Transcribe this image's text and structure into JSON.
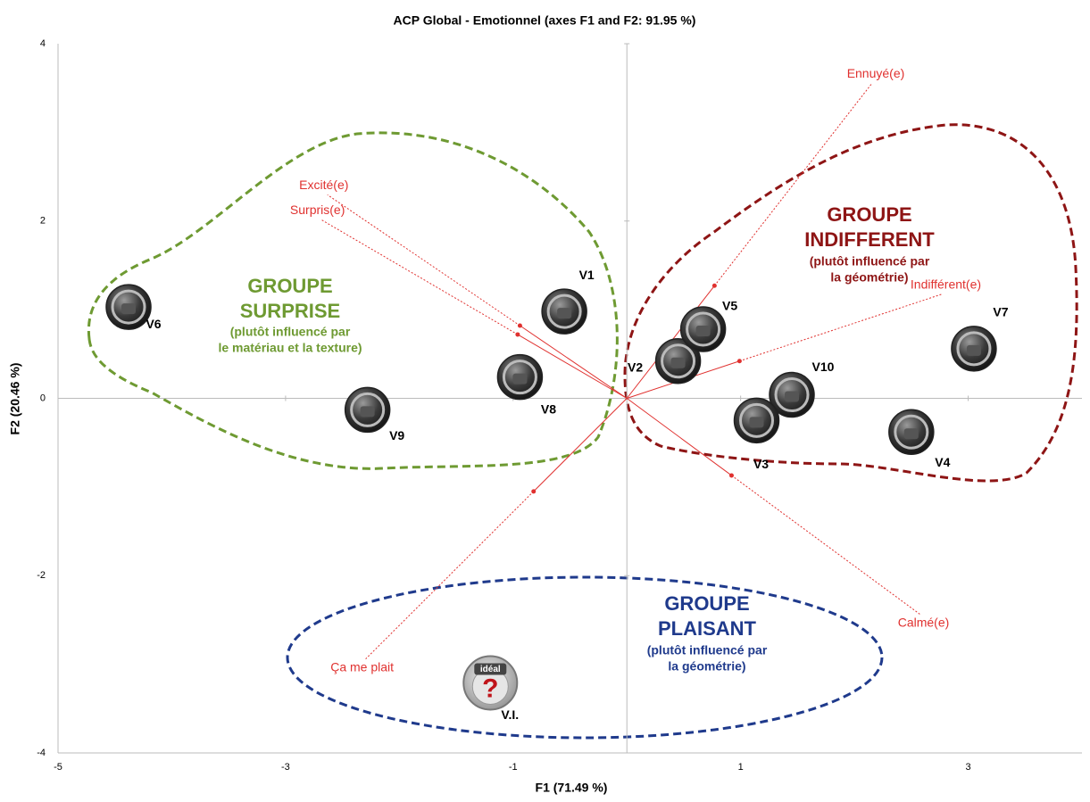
{
  "chart_data": {
    "type": "biplot",
    "title": "ACP  Global  -  Emotionnel  (axes F1 and F2: 91.95 %)",
    "x_label": "F1 (71.49 %)",
    "y_label": "F2 (20.46 %)",
    "xlim": [
      -5,
      4
    ],
    "ylim": [
      -4,
      4
    ],
    "xticks": [
      -5,
      -3,
      -1,
      1,
      3
    ],
    "yticks": [
      -4,
      -2,
      0,
      2,
      4
    ],
    "points": [
      {
        "label": "V6",
        "x": -4.38,
        "y": 1.03
      },
      {
        "label": "V9",
        "x": -2.28,
        "y": -0.13
      },
      {
        "label": "V8",
        "x": -0.94,
        "y": 0.24
      },
      {
        "label": "V1",
        "x": -0.55,
        "y": 0.98
      },
      {
        "label": "V2",
        "x": 0.45,
        "y": 0.42
      },
      {
        "label": "V5",
        "x": 0.67,
        "y": 0.78
      },
      {
        "label": "V10",
        "x": 1.45,
        "y": 0.04
      },
      {
        "label": "V3",
        "x": 1.14,
        "y": -0.25
      },
      {
        "label": "V4",
        "x": 2.5,
        "y": -0.38
      },
      {
        "label": "V7",
        "x": 3.05,
        "y": 0.56
      },
      {
        "label": "V.I.",
        "x": -1.2,
        "y": -3.21,
        "icon_text": "idéal",
        "icon_symbol": "?"
      }
    ],
    "vector_color": "#e0312f",
    "vectors": [
      {
        "label": "Excité(e)",
        "x": -0.94,
        "y": 0.82
      },
      {
        "label": "Surpris(e)",
        "x": -0.96,
        "y": 0.72
      },
      {
        "label": "Ennuyé(e)",
        "x": 0.77,
        "y": 1.27
      },
      {
        "label": "Indifférent(e)",
        "x": 0.99,
        "y": 0.42
      },
      {
        "label": "Calmé(e)",
        "x": 0.92,
        "y": -0.87
      },
      {
        "label": "Ça me plait",
        "x": -0.82,
        "y": -1.05
      }
    ],
    "groups": [
      {
        "title": [
          "GROUPE",
          "SURPRISE"
        ],
        "subtitle": [
          "(plutôt influencé par",
          "le matériau et la texture)"
        ],
        "color": "#6e9a32"
      },
      {
        "title": [
          "GROUPE",
          "INDIFFERENT"
        ],
        "subtitle": [
          "(plutôt influencé par",
          "la géométrie)"
        ],
        "color": "#8e1515"
      },
      {
        "title": [
          "GROUPE",
          "PLAISANT"
        ],
        "subtitle": [
          "(plutôt influencé par",
          "la géométrie)"
        ],
        "color": "#1f3a8c"
      }
    ]
  }
}
